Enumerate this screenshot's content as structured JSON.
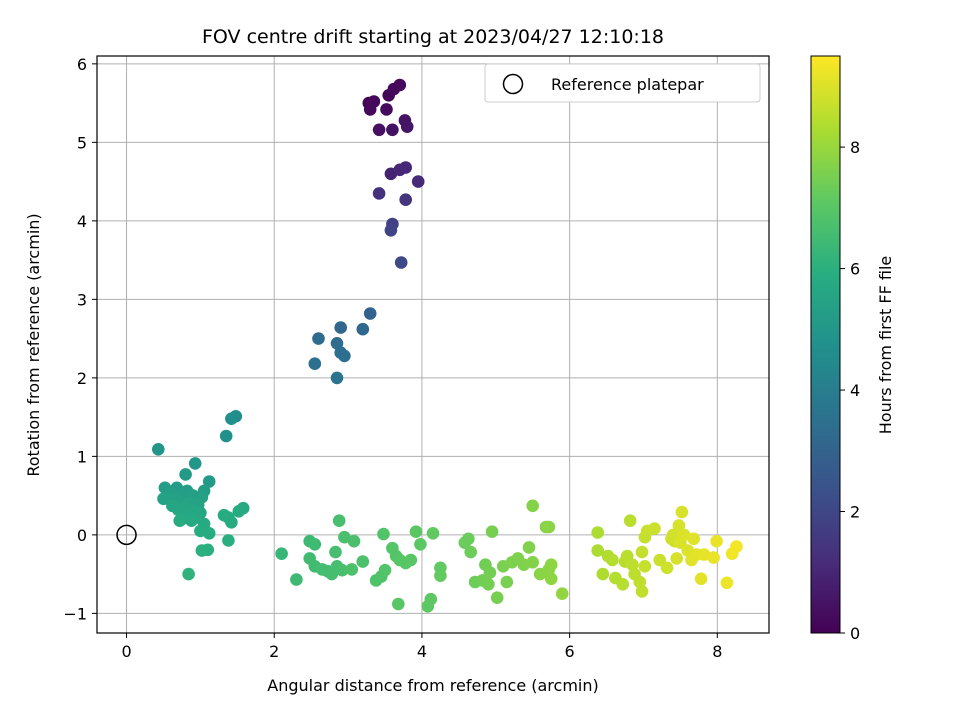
{
  "chart_data": {
    "type": "scatter",
    "title": "FOV centre drift starting at 2023/04/27 12:10:18",
    "xlabel": "Angular distance from reference (arcmin)",
    "ylabel": "Rotation from reference (arcmin)",
    "xlim": [
      -0.4,
      8.7
    ],
    "ylim": [
      -1.25,
      6.1
    ],
    "x_ticks": [
      0,
      2,
      4,
      6,
      8
    ],
    "y_ticks": [
      -1,
      0,
      1,
      2,
      3,
      4,
      5,
      6
    ],
    "x_tick_labels": [
      "0",
      "2",
      "4",
      "6",
      "8"
    ],
    "y_tick_labels": [
      "−1",
      "0",
      "1",
      "2",
      "3",
      "4",
      "5",
      "6"
    ],
    "grid": true,
    "legend": {
      "placement": "top-right",
      "entries": [
        "Reference platepar"
      ]
    },
    "reference_point": {
      "x": 0,
      "y": 0,
      "name": "Reference platepar"
    },
    "colorbar": {
      "label": "Hours from first FF file",
      "colormap": "viridis",
      "range": [
        0,
        9.5
      ],
      "ticks": [
        0,
        2,
        4,
        6,
        8
      ],
      "tick_labels": [
        "0",
        "2",
        "4",
        "6",
        "8"
      ]
    },
    "points": [
      {
        "x": 3.28,
        "y": 5.5,
        "c": 0.1
      },
      {
        "x": 3.35,
        "y": 5.52,
        "c": 0.15
      },
      {
        "x": 3.3,
        "y": 5.42,
        "c": 0.2
      },
      {
        "x": 3.55,
        "y": 5.6,
        "c": 0.1
      },
      {
        "x": 3.62,
        "y": 5.68,
        "c": 0.2
      },
      {
        "x": 3.7,
        "y": 5.73,
        "c": 0.25
      },
      {
        "x": 3.52,
        "y": 5.42,
        "c": 0.3
      },
      {
        "x": 3.42,
        "y": 5.16,
        "c": 0.4
      },
      {
        "x": 3.6,
        "y": 5.16,
        "c": 0.45
      },
      {
        "x": 3.77,
        "y": 5.28,
        "c": 0.5
      },
      {
        "x": 3.8,
        "y": 5.2,
        "c": 0.55
      },
      {
        "x": 3.58,
        "y": 4.6,
        "c": 0.9
      },
      {
        "x": 3.7,
        "y": 4.65,
        "c": 1.0
      },
      {
        "x": 3.78,
        "y": 4.68,
        "c": 1.05
      },
      {
        "x": 3.95,
        "y": 4.5,
        "c": 1.1
      },
      {
        "x": 3.42,
        "y": 4.35,
        "c": 1.3
      },
      {
        "x": 3.78,
        "y": 4.27,
        "c": 1.4
      },
      {
        "x": 3.6,
        "y": 3.96,
        "c": 1.8
      },
      {
        "x": 3.58,
        "y": 3.88,
        "c": 1.9
      },
      {
        "x": 3.72,
        "y": 3.47,
        "c": 2.1
      },
      {
        "x": 3.3,
        "y": 2.82,
        "c": 3.0
      },
      {
        "x": 2.9,
        "y": 2.64,
        "c": 3.1
      },
      {
        "x": 3.2,
        "y": 2.62,
        "c": 3.2
      },
      {
        "x": 2.6,
        "y": 2.5,
        "c": 3.3
      },
      {
        "x": 2.85,
        "y": 2.44,
        "c": 3.35
      },
      {
        "x": 2.9,
        "y": 2.32,
        "c": 3.4
      },
      {
        "x": 2.95,
        "y": 2.28,
        "c": 3.45
      },
      {
        "x": 2.55,
        "y": 2.18,
        "c": 3.5
      },
      {
        "x": 2.85,
        "y": 2.0,
        "c": 3.6
      },
      {
        "x": 1.48,
        "y": 1.51,
        "c": 4.6
      },
      {
        "x": 1.42,
        "y": 1.48,
        "c": 4.7
      },
      {
        "x": 1.35,
        "y": 1.26,
        "c": 4.8
      },
      {
        "x": 0.43,
        "y": 1.09,
        "c": 5.0
      },
      {
        "x": 0.93,
        "y": 0.91,
        "c": 5.0
      },
      {
        "x": 0.8,
        "y": 0.77,
        "c": 5.1
      },
      {
        "x": 1.12,
        "y": 0.68,
        "c": 5.1
      },
      {
        "x": 0.52,
        "y": 0.6,
        "c": 5.2
      },
      {
        "x": 0.68,
        "y": 0.6,
        "c": 5.2
      },
      {
        "x": 0.82,
        "y": 0.56,
        "c": 5.25
      },
      {
        "x": 1.05,
        "y": 0.56,
        "c": 5.25
      },
      {
        "x": 0.6,
        "y": 0.55,
        "c": 5.3
      },
      {
        "x": 0.75,
        "y": 0.52,
        "c": 5.3
      },
      {
        "x": 0.9,
        "y": 0.5,
        "c": 5.35
      },
      {
        "x": 1.02,
        "y": 0.48,
        "c": 5.35
      },
      {
        "x": 0.55,
        "y": 0.47,
        "c": 5.4
      },
      {
        "x": 0.66,
        "y": 0.46,
        "c": 5.4
      },
      {
        "x": 0.5,
        "y": 0.46,
        "c": 5.45
      },
      {
        "x": 0.72,
        "y": 0.42,
        "c": 5.45
      },
      {
        "x": 0.85,
        "y": 0.4,
        "c": 5.5
      },
      {
        "x": 0.97,
        "y": 0.38,
        "c": 5.5
      },
      {
        "x": 0.62,
        "y": 0.37,
        "c": 5.55
      },
      {
        "x": 0.78,
        "y": 0.34,
        "c": 5.55
      },
      {
        "x": 0.7,
        "y": 0.32,
        "c": 5.6
      },
      {
        "x": 0.9,
        "y": 0.3,
        "c": 5.6
      },
      {
        "x": 1.0,
        "y": 0.28,
        "c": 5.65
      },
      {
        "x": 0.82,
        "y": 0.26,
        "c": 5.65
      },
      {
        "x": 0.95,
        "y": 0.22,
        "c": 5.7
      },
      {
        "x": 0.75,
        "y": 0.2,
        "c": 5.7
      },
      {
        "x": 0.88,
        "y": 0.18,
        "c": 5.75
      },
      {
        "x": 1.05,
        "y": 0.14,
        "c": 5.75
      },
      {
        "x": 0.72,
        "y": 0.18,
        "c": 5.8
      },
      {
        "x": 1.0,
        "y": 0.05,
        "c": 5.8
      },
      {
        "x": 1.12,
        "y": 0.02,
        "c": 5.85
      },
      {
        "x": 1.58,
        "y": 0.34,
        "c": 5.7
      },
      {
        "x": 1.52,
        "y": 0.3,
        "c": 5.75
      },
      {
        "x": 1.38,
        "y": 0.22,
        "c": 5.8
      },
      {
        "x": 1.42,
        "y": 0.16,
        "c": 5.85
      },
      {
        "x": 1.32,
        "y": 0.25,
        "c": 5.8
      },
      {
        "x": 1.38,
        "y": -0.07,
        "c": 5.95
      },
      {
        "x": 1.02,
        "y": -0.2,
        "c": 6.0
      },
      {
        "x": 1.1,
        "y": -0.19,
        "c": 6.0
      },
      {
        "x": 0.84,
        "y": -0.5,
        "c": 6.1
      },
      {
        "x": 2.1,
        "y": -0.24,
        "c": 6.3
      },
      {
        "x": 2.3,
        "y": -0.57,
        "c": 6.4
      },
      {
        "x": 2.48,
        "y": -0.08,
        "c": 6.4
      },
      {
        "x": 2.55,
        "y": -0.12,
        "c": 6.45
      },
      {
        "x": 2.48,
        "y": -0.3,
        "c": 6.5
      },
      {
        "x": 2.55,
        "y": -0.4,
        "c": 6.5
      },
      {
        "x": 2.65,
        "y": -0.44,
        "c": 6.55
      },
      {
        "x": 2.72,
        "y": -0.46,
        "c": 6.55
      },
      {
        "x": 2.78,
        "y": -0.5,
        "c": 6.6
      },
      {
        "x": 2.85,
        "y": -0.4,
        "c": 6.6
      },
      {
        "x": 2.92,
        "y": -0.45,
        "c": 6.65
      },
      {
        "x": 2.83,
        "y": -0.22,
        "c": 6.6
      },
      {
        "x": 2.88,
        "y": 0.18,
        "c": 6.65
      },
      {
        "x": 2.95,
        "y": -0.03,
        "c": 6.7
      },
      {
        "x": 3.08,
        "y": -0.08,
        "c": 6.7
      },
      {
        "x": 3.05,
        "y": -0.44,
        "c": 6.75
      },
      {
        "x": 3.2,
        "y": -0.34,
        "c": 6.75
      },
      {
        "x": 3.38,
        "y": -0.58,
        "c": 6.8
      },
      {
        "x": 3.45,
        "y": -0.53,
        "c": 6.8
      },
      {
        "x": 3.48,
        "y": 0.01,
        "c": 6.85
      },
      {
        "x": 3.5,
        "y": -0.45,
        "c": 6.85
      },
      {
        "x": 3.6,
        "y": -0.17,
        "c": 6.9
      },
      {
        "x": 3.65,
        "y": -0.27,
        "c": 6.9
      },
      {
        "x": 3.7,
        "y": -0.32,
        "c": 6.95
      },
      {
        "x": 3.78,
        "y": -0.36,
        "c": 6.95
      },
      {
        "x": 3.85,
        "y": -0.32,
        "c": 7.0
      },
      {
        "x": 3.68,
        "y": -0.88,
        "c": 7.0
      },
      {
        "x": 3.92,
        "y": 0.04,
        "c": 7.05
      },
      {
        "x": 3.98,
        "y": -0.12,
        "c": 7.05
      },
      {
        "x": 4.08,
        "y": -0.91,
        "c": 7.1
      },
      {
        "x": 4.12,
        "y": -0.82,
        "c": 7.1
      },
      {
        "x": 4.15,
        "y": 0.02,
        "c": 7.15
      },
      {
        "x": 4.25,
        "y": -0.42,
        "c": 7.15
      },
      {
        "x": 4.25,
        "y": -0.52,
        "c": 7.2
      },
      {
        "x": 4.58,
        "y": -0.1,
        "c": 7.3
      },
      {
        "x": 4.63,
        "y": -0.05,
        "c": 7.3
      },
      {
        "x": 4.66,
        "y": -0.22,
        "c": 7.35
      },
      {
        "x": 4.72,
        "y": -0.6,
        "c": 7.35
      },
      {
        "x": 4.82,
        "y": -0.58,
        "c": 7.4
      },
      {
        "x": 4.86,
        "y": -0.38,
        "c": 7.4
      },
      {
        "x": 4.9,
        "y": -0.63,
        "c": 7.45
      },
      {
        "x": 4.92,
        "y": -0.48,
        "c": 7.45
      },
      {
        "x": 4.95,
        "y": 0.04,
        "c": 7.5
      },
      {
        "x": 5.02,
        "y": -0.8,
        "c": 7.5
      },
      {
        "x": 5.1,
        "y": -0.4,
        "c": 7.55
      },
      {
        "x": 5.15,
        "y": -0.6,
        "c": 7.55
      },
      {
        "x": 5.22,
        "y": -0.35,
        "c": 7.6
      },
      {
        "x": 5.3,
        "y": -0.3,
        "c": 7.6
      },
      {
        "x": 5.38,
        "y": -0.38,
        "c": 7.65
      },
      {
        "x": 5.45,
        "y": -0.16,
        "c": 7.65
      },
      {
        "x": 5.5,
        "y": 0.37,
        "c": 7.7
      },
      {
        "x": 5.5,
        "y": -0.35,
        "c": 7.7
      },
      {
        "x": 5.6,
        "y": -0.5,
        "c": 7.75
      },
      {
        "x": 5.68,
        "y": 0.1,
        "c": 7.75
      },
      {
        "x": 5.72,
        "y": 0.1,
        "c": 7.8
      },
      {
        "x": 5.72,
        "y": -0.44,
        "c": 7.8
      },
      {
        "x": 5.75,
        "y": -0.38,
        "c": 7.85
      },
      {
        "x": 5.75,
        "y": -0.56,
        "c": 7.85
      },
      {
        "x": 5.9,
        "y": -0.75,
        "c": 7.9
      },
      {
        "x": 6.38,
        "y": 0.03,
        "c": 8.3
      },
      {
        "x": 6.38,
        "y": -0.2,
        "c": 8.3
      },
      {
        "x": 6.45,
        "y": -0.5,
        "c": 8.35
      },
      {
        "x": 6.52,
        "y": -0.27,
        "c": 8.35
      },
      {
        "x": 6.58,
        "y": -0.32,
        "c": 8.4
      },
      {
        "x": 6.62,
        "y": -0.55,
        "c": 8.4
      },
      {
        "x": 6.72,
        "y": -0.63,
        "c": 8.45
      },
      {
        "x": 6.75,
        "y": -0.34,
        "c": 8.45
      },
      {
        "x": 6.78,
        "y": -0.27,
        "c": 8.5
      },
      {
        "x": 6.82,
        "y": 0.18,
        "c": 8.5
      },
      {
        "x": 6.85,
        "y": -0.38,
        "c": 8.55
      },
      {
        "x": 6.88,
        "y": -0.5,
        "c": 8.55
      },
      {
        "x": 6.95,
        "y": -0.6,
        "c": 8.6
      },
      {
        "x": 6.98,
        "y": -0.72,
        "c": 8.6
      },
      {
        "x": 6.98,
        "y": -0.22,
        "c": 8.65
      },
      {
        "x": 7.02,
        "y": -0.03,
        "c": 8.65
      },
      {
        "x": 7.05,
        "y": 0.05,
        "c": 8.7
      },
      {
        "x": 7.02,
        "y": -0.4,
        "c": 8.7
      },
      {
        "x": 7.15,
        "y": 0.08,
        "c": 8.75
      },
      {
        "x": 7.22,
        "y": -0.32,
        "c": 8.75
      },
      {
        "x": 7.32,
        "y": -0.42,
        "c": 8.8
      },
      {
        "x": 7.38,
        "y": -0.05,
        "c": 8.8
      },
      {
        "x": 7.4,
        "y": 0.0,
        "c": 8.85
      },
      {
        "x": 7.42,
        "y": -0.08,
        "c": 8.85
      },
      {
        "x": 7.45,
        "y": -0.3,
        "c": 8.9
      },
      {
        "x": 7.48,
        "y": 0.12,
        "c": 8.9
      },
      {
        "x": 7.5,
        "y": -0.1,
        "c": 8.95
      },
      {
        "x": 7.52,
        "y": 0.29,
        "c": 8.95
      },
      {
        "x": 7.55,
        "y": 0.0,
        "c": 9.0
      },
      {
        "x": 7.6,
        "y": -0.2,
        "c": 9.0
      },
      {
        "x": 7.65,
        "y": -0.32,
        "c": 9.05
      },
      {
        "x": 7.68,
        "y": -0.05,
        "c": 9.05
      },
      {
        "x": 7.72,
        "y": -0.25,
        "c": 9.1
      },
      {
        "x": 7.78,
        "y": -0.56,
        "c": 9.1
      },
      {
        "x": 7.82,
        "y": -0.25,
        "c": 9.15
      },
      {
        "x": 7.95,
        "y": -0.29,
        "c": 9.2
      },
      {
        "x": 7.99,
        "y": -0.08,
        "c": 9.2
      },
      {
        "x": 8.13,
        "y": -0.61,
        "c": 9.25
      },
      {
        "x": 8.2,
        "y": -0.24,
        "c": 9.3
      },
      {
        "x": 8.26,
        "y": -0.15,
        "c": 9.35
      }
    ]
  }
}
